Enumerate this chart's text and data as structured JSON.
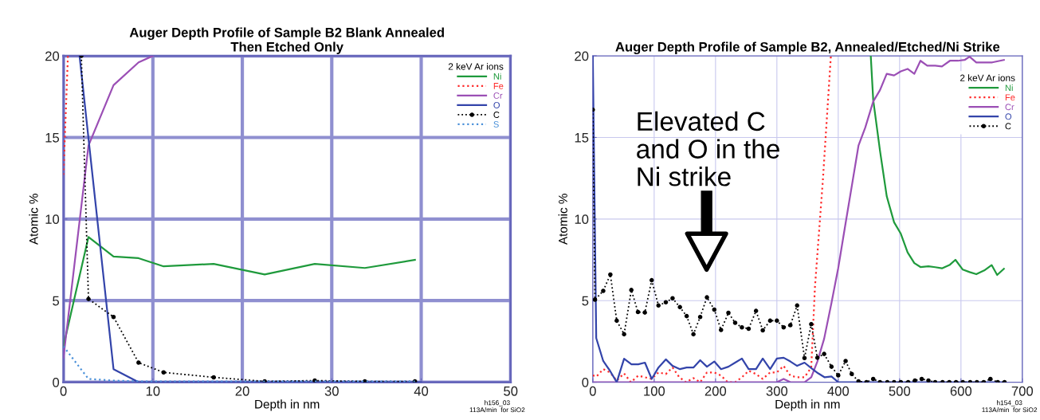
{
  "chart_data": [
    {
      "type": "line",
      "title": "Auger Depth Profile of Sample B2 Blank Annealed\nThen Etched Only",
      "xlabel": "Depth in nm",
      "ylabel": "Atomic %",
      "legend_title": "2 keV Ar ions",
      "legend": "top right",
      "grid": true,
      "xlim": [
        0,
        50
      ],
      "ylim": [
        0,
        20
      ],
      "xticks": [
        0,
        10,
        20,
        30,
        40,
        50
      ],
      "yticks": [
        0,
        5,
        10,
        15,
        20
      ],
      "annotations": [
        "h156_03\n113A/min  for SiO2"
      ],
      "series": [
        {
          "name": "Ni",
          "color": "#1f9a3c",
          "line_style": "solid",
          "marker": "none",
          "x": [
            0,
            2.8,
            5.6,
            8.4,
            11.2,
            16.8,
            22.5,
            28.1,
            33.7,
            39.3
          ],
          "values": [
            2.2,
            8.9,
            7.7,
            7.6,
            7.1,
            7.25,
            6.6,
            7.25,
            7.0,
            7.5
          ]
        },
        {
          "name": "Fe",
          "color": "#ff2a2a",
          "line_style": "dotted",
          "marker": "none",
          "x": [
            0,
            0.5
          ],
          "values": [
            12.7,
            20
          ]
        },
        {
          "name": "Cr",
          "color": "#9b4fb5",
          "line_style": "solid",
          "marker": "none",
          "x": [
            0,
            2.8,
            5.6,
            8.4,
            10
          ],
          "values": [
            1.5,
            14.5,
            18.2,
            19.6,
            20
          ]
        },
        {
          "name": "O",
          "color": "#3344aa",
          "line_style": "solid",
          "marker": "none",
          "x": [
            1.8,
            5.6,
            8.4,
            40
          ],
          "values": [
            20,
            0.8,
            0,
            0
          ]
        },
        {
          "name": "C",
          "color": "#000000",
          "line_style": "dotted",
          "marker": "circle",
          "x": [
            2,
            2.8,
            5.6,
            8.4,
            11.2,
            16.8,
            22.5,
            28.1,
            33.7,
            39.3
          ],
          "values": [
            20,
            5.1,
            4.0,
            1.2,
            0.6,
            0.3,
            0.05,
            0.1,
            0.05,
            0.05
          ]
        },
        {
          "name": "S",
          "color": "#4a90d9",
          "line_style": "dotted",
          "marker": "none",
          "x": [
            0,
            2.8,
            5.6,
            8.4,
            39.3
          ],
          "values": [
            2.2,
            0.2,
            0.1,
            0.05,
            0.05
          ]
        }
      ]
    },
    {
      "type": "line",
      "title": "Auger Depth Profile of Sample B2, Annealed/Etched/Ni Strike",
      "xlabel": "Depth in nm",
      "ylabel": "Atomic %",
      "legend_title": "2 keV Ar ions",
      "legend": "top right",
      "grid": true,
      "xlim": [
        0,
        700
      ],
      "ylim": [
        0,
        20
      ],
      "xticks": [
        0,
        100,
        200,
        300,
        400,
        500,
        600,
        700
      ],
      "yticks": [
        0,
        5,
        10,
        15,
        20
      ],
      "annotations": [
        "Elevated C\nand O in the\nNi strike",
        "h154_03\n113A/min  for SiO2"
      ],
      "series": [
        {
          "name": "Ni",
          "color": "#1f9a3c",
          "line_style": "solid",
          "marker": "none",
          "x": [
            453,
            457,
            468,
            479,
            491,
            502,
            513,
            524,
            534,
            547,
            558,
            569,
            582,
            591,
            603,
            614,
            625,
            638,
            650,
            659,
            670
          ],
          "values": [
            20,
            17.3,
            14.2,
            11.4,
            9.8,
            9.1,
            7.96,
            7.3,
            7.06,
            7.1,
            7.05,
            6.98,
            7.2,
            7.5,
            6.9,
            6.75,
            6.62,
            6.85,
            7.18,
            6.57,
            6.95
          ]
        },
        {
          "name": "Fe",
          "color": "#ff2a2a",
          "line_style": "dotted",
          "marker": "none",
          "x": [
            0,
            6,
            17,
            28,
            39,
            51,
            62,
            74,
            85,
            96,
            107,
            119,
            130,
            141,
            152,
            164,
            175,
            186,
            198,
            209,
            220,
            232,
            243,
            254,
            266,
            277,
            289,
            300,
            311,
            322,
            333,
            345,
            356,
            362,
            375,
            388
          ],
          "values": [
            0.42,
            0.35,
            0.8,
            0.6,
            0.1,
            0.54,
            0,
            0.4,
            0.3,
            0.2,
            0.6,
            0.5,
            0.9,
            0.3,
            0,
            0.25,
            0,
            0.6,
            0.6,
            0.4,
            0,
            0,
            0.3,
            0.7,
            0.5,
            0.2,
            0.6,
            0.6,
            1.0,
            0.4,
            0.3,
            0.3,
            0.9,
            5.8,
            12.4,
            20
          ]
        },
        {
          "name": "Cr",
          "color": "#9b4fb5",
          "line_style": "solid",
          "marker": "none",
          "x": [
            0,
            300,
            311,
            322,
            345,
            356,
            366,
            377,
            389,
            400,
            412,
            422,
            433,
            444,
            457,
            468,
            479,
            491,
            502,
            513,
            524,
            534,
            545,
            558,
            569,
            582,
            595,
            606,
            614,
            625,
            638,
            651,
            670
          ],
          "values": [
            0,
            0,
            0.2,
            0,
            0,
            0.3,
            1.27,
            2.66,
            4.86,
            7.0,
            9.75,
            12.0,
            14.5,
            15.6,
            17.2,
            17.9,
            18.9,
            18.8,
            19.05,
            19.2,
            18.9,
            19.7,
            19.4,
            19.4,
            19.35,
            19.7,
            19.7,
            19.75,
            19.95,
            19.6,
            19.6,
            19.6,
            19.75
          ]
        },
        {
          "name": "O",
          "color": "#3344aa",
          "line_style": "solid",
          "marker": "none",
          "x": [
            0,
            5.6,
            17,
            28,
            39,
            51,
            63,
            74,
            85,
            96,
            107,
            119,
            130,
            142,
            153,
            164,
            175,
            186,
            198,
            209,
            221,
            232,
            243,
            254,
            266,
            277,
            289,
            300,
            311,
            322,
            333,
            345,
            356,
            367,
            378,
            389,
            400,
            500,
            671
          ],
          "values": [
            20,
            2.7,
            1.3,
            0.7,
            0,
            1.44,
            1.1,
            1.1,
            1.2,
            0.2,
            0.9,
            1.4,
            1.0,
            0.8,
            0.9,
            0.9,
            1.35,
            0.95,
            1.27,
            0.8,
            0.95,
            1.2,
            1.45,
            0.8,
            0.8,
            1.45,
            0.8,
            1.45,
            1.5,
            1.27,
            1.0,
            1.2,
            0.86,
            0.55,
            0.3,
            0.35,
            0,
            0,
            0
          ]
        },
        {
          "name": "C",
          "color": "#000000",
          "line_style": "dotted",
          "marker": "circle",
          "x": [
            0,
            3.5,
            17,
            28.6,
            39,
            51,
            62.8,
            73.6,
            84.8,
            96,
            107,
            119,
            130,
            142,
            153,
            164,
            175,
            186,
            198,
            209,
            221,
            232,
            243,
            254,
            266,
            277,
            289,
            300,
            311,
            322,
            333,
            345,
            356,
            366,
            377,
            389,
            400,
            412,
            422,
            433,
            446,
            457,
            468,
            480,
            491,
            502,
            514,
            525,
            536,
            547,
            558,
            570,
            581,
            592,
            603,
            615,
            626,
            637,
            648,
            660,
            671
          ],
          "values": [
            16.7,
            5.06,
            5.6,
            6.6,
            3.77,
            2.94,
            5.65,
            4.3,
            4.27,
            6.25,
            4.7,
            4.9,
            5.14,
            4.6,
            4.05,
            2.94,
            4.0,
            5.2,
            4.45,
            3.2,
            4.25,
            3.64,
            3.36,
            3.28,
            4.37,
            3.18,
            3.77,
            3.77,
            3.36,
            3.5,
            4.7,
            1.48,
            3.56,
            1.5,
            1.73,
            0.95,
            0.42,
            1.3,
            0.5,
            0.05,
            0,
            0.2,
            0,
            0,
            0,
            0,
            0,
            0.1,
            0.2,
            0.1,
            0,
            0,
            0,
            0,
            0,
            0,
            0,
            0,
            0.2,
            0,
            0
          ]
        }
      ]
    }
  ]
}
